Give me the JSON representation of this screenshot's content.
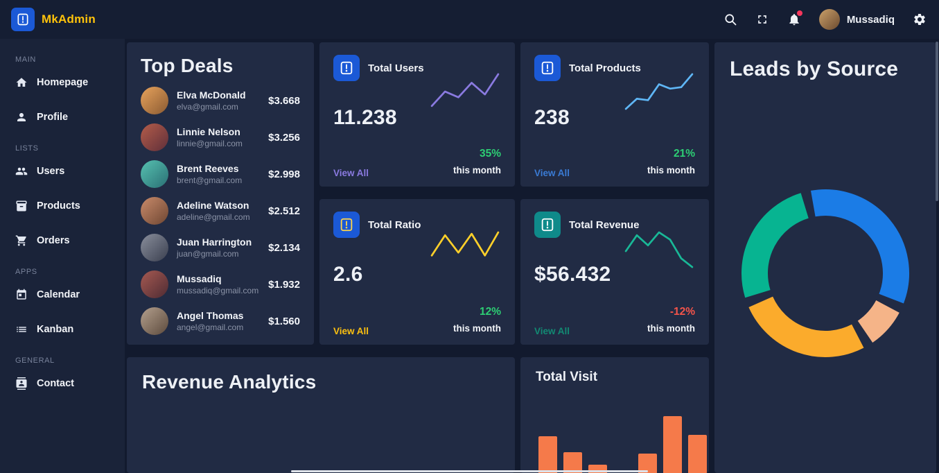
{
  "topbar": {
    "brand": "MkAdmin",
    "brand_color": "#ffc30b",
    "user_name": "Mussadiq",
    "icons": [
      "search-icon",
      "fullscreen-icon",
      "bell-icon",
      "gear-icon"
    ],
    "notification_dot_color": "#f5365c"
  },
  "sidebar": {
    "sections": [
      {
        "label": "MAIN",
        "items": [
          {
            "label": "Homepage",
            "icon": "home-icon"
          },
          {
            "label": "Profile",
            "icon": "person-icon"
          }
        ]
      },
      {
        "label": "LISTS",
        "items": [
          {
            "label": "Users",
            "icon": "users-icon"
          },
          {
            "label": "Products",
            "icon": "products-icon"
          },
          {
            "label": "Orders",
            "icon": "cart-icon"
          }
        ]
      },
      {
        "label": "APPS",
        "items": [
          {
            "label": "Calendar",
            "icon": "calendar-icon"
          },
          {
            "label": "Kanban",
            "icon": "kanban-icon"
          }
        ]
      },
      {
        "label": "GENERAL",
        "items": [
          {
            "label": "Contact",
            "icon": "contact-icon"
          }
        ]
      }
    ]
  },
  "top_deals": {
    "title": "Top Deals",
    "deals": [
      {
        "name": "Elva McDonald",
        "email": "elva@gmail.com",
        "amount": "$3.668"
      },
      {
        "name": "Linnie Nelson",
        "email": "linnie@gmail.com",
        "amount": "$3.256"
      },
      {
        "name": "Brent Reeves",
        "email": "brent@gmail.com",
        "amount": "$2.998"
      },
      {
        "name": "Adeline Watson",
        "email": "adeline@gmail.com",
        "amount": "$2.512"
      },
      {
        "name": "Juan Harrington",
        "email": "juan@gmail.com",
        "amount": "$2.134"
      },
      {
        "name": "Mussadiq",
        "email": "mussadiq@gmail.com",
        "amount": "$1.932"
      },
      {
        "name": "Angel Thomas",
        "email": "angel@gmail.com",
        "amount": "$1.560"
      }
    ]
  },
  "stat_cards": [
    {
      "title": "Total Users",
      "value": "11.238",
      "view_all": "View All",
      "percent": "35%",
      "period": "this month",
      "accent": "#8a7ae0",
      "view_all_color": "#8a7ae0",
      "percent_color": "#2dce74",
      "icon_bg": "#1b59d6",
      "icon_color": "#ffffff"
    },
    {
      "title": "Total Products",
      "value": "238",
      "view_all": "View All",
      "percent": "21%",
      "period": "this month",
      "accent": "#5fb6f5",
      "view_all_color": "#3a7bd5",
      "percent_color": "#2dce74",
      "icon_bg": "#1b59d6",
      "icon_color": "#ffffff"
    },
    {
      "title": "Total Ratio",
      "value": "2.6",
      "view_all": "View All",
      "percent": "12%",
      "period": "this month",
      "accent": "#ffd02a",
      "view_all_color": "#fdc010",
      "percent_color": "#2dce74",
      "icon_bg": "#1b59d6",
      "icon_color": "#ffd54a"
    },
    {
      "title": "Total Revenue",
      "value": "$56.432",
      "view_all": "View All",
      "percent": "-12%",
      "period": "this month",
      "accent": "#19b897",
      "view_all_color": "#128a73",
      "percent_color": "#f5544a",
      "icon_bg": "#0f8a8a",
      "icon_color": "#ffffff"
    }
  ],
  "leads_card": {
    "title": "Leads by Source"
  },
  "revenue_card": {
    "title": "Revenue Analytics"
  },
  "visit_card": {
    "title": "Total Visit"
  },
  "chart_data": [
    {
      "type": "line",
      "name": "total-users-sparkline",
      "color": "#8a7ae0",
      "y": [
        46,
        26,
        34,
        14,
        30,
        2
      ]
    },
    {
      "type": "line",
      "name": "total-products-sparkline",
      "color": "#5fb6f5",
      "y": [
        50,
        36,
        38,
        16,
        22,
        20,
        2
      ]
    },
    {
      "type": "line",
      "name": "total-ratio-sparkline",
      "color": "#ffd02a",
      "y": [
        36,
        8,
        32,
        6,
        36,
        4
      ]
    },
    {
      "type": "line",
      "name": "total-revenue-sparkline",
      "color": "#19b897",
      "y": [
        30,
        8,
        22,
        4,
        14,
        40,
        52
      ]
    },
    {
      "type": "pie",
      "name": "leads-by-source-donut",
      "title": "Leads by Source",
      "donut": true,
      "start_angle_deg": -100,
      "gap_deg": 7,
      "segments": [
        {
          "label": "segment-1",
          "value": 35,
          "color": "#1b7ce6"
        },
        {
          "label": "segment-2",
          "value": 8,
          "color": "#f5b488"
        },
        {
          "label": "segment-3",
          "value": 27,
          "color": "#fbab2c"
        },
        {
          "label": "segment-4",
          "value": 26,
          "color": "#07b491"
        }
      ]
    },
    {
      "type": "bar",
      "name": "total-visit-bars",
      "title": "Total Visit",
      "color": "#f57a4a",
      "values": [
        68,
        45,
        27,
        0,
        43,
        97,
        70
      ]
    }
  ]
}
